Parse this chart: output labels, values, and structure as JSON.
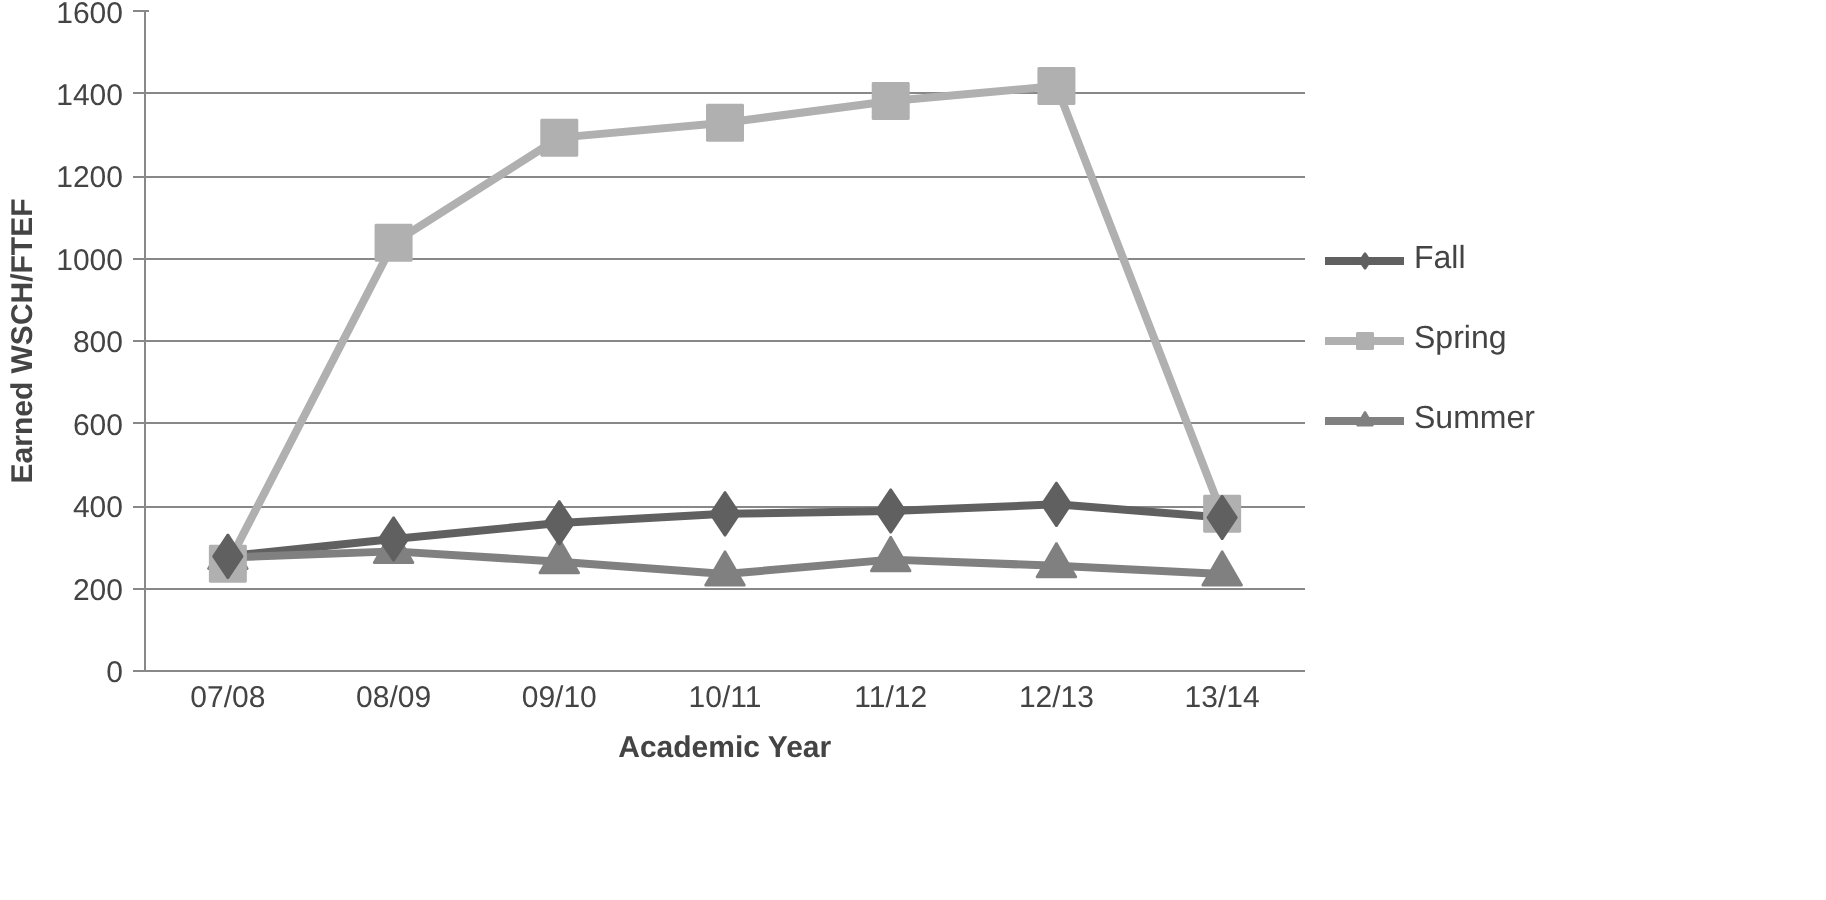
{
  "chart_data": {
    "type": "line",
    "xlabel": "Academic Year",
    "ylabel": "Earned WSCH/FTEF",
    "categories": [
      "07/08",
      "08/09",
      "09/10",
      "10/11",
      "11/12",
      "12/13",
      "13/14"
    ],
    "series": [
      {
        "name": "Fall",
        "color": "#606060",
        "marker": "diamond",
        "values": [
          278,
          320,
          359,
          381,
          388,
          404,
          372
        ]
      },
      {
        "name": "Spring",
        "color": "#b0b0b0",
        "marker": "square",
        "values": [
          260,
          1038,
          1293,
          1329,
          1382,
          1418,
          381
        ]
      },
      {
        "name": "Summer",
        "color": "#808080",
        "marker": "triangle",
        "values": [
          275,
          290,
          265,
          235,
          270,
          255,
          235
        ]
      }
    ],
    "ylim": [
      0,
      1600
    ],
    "yticks": [
      0,
      200,
      400,
      600,
      800,
      1000,
      1200,
      1400,
      1600
    ],
    "grid": "y",
    "legend": "right",
    "line_style": "solid"
  }
}
